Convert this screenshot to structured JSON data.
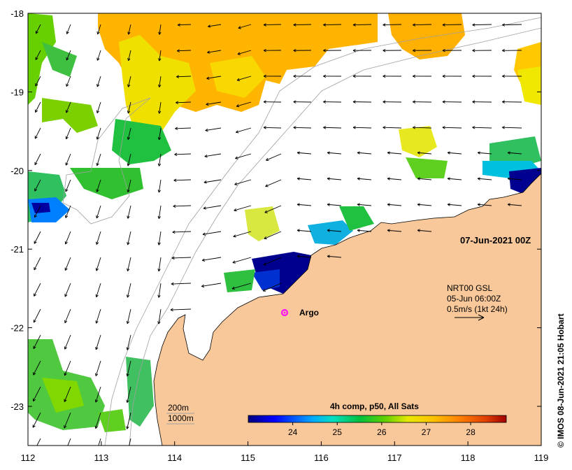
{
  "map": {
    "date_label": "07-Jun-2021 00Z",
    "credit": "© IMOS 08-Jun-2021 21:05 Hobart",
    "argo_label": "Argo",
    "current_box": {
      "line1": "NRT00 GSL",
      "line2": "05-Jun 06:00Z",
      "line3": "0.5m/s (1kt 24h)"
    },
    "depth_legend": [
      "200m",
      "1000m"
    ],
    "colorbar": {
      "title": "4h comp, p50, All Sats",
      "ticks": [
        "24",
        "25",
        "26",
        "27",
        "28"
      ],
      "range": [
        23.0,
        28.8
      ],
      "colors": [
        "#00007f",
        "#0000ff",
        "#00aaff",
        "#00e0c0",
        "#00c040",
        "#60d000",
        "#e8e800",
        "#ffc000",
        "#ff8000",
        "#e04000",
        "#a00000"
      ]
    },
    "x_ticks": [
      "112",
      "113",
      "114",
      "115",
      "116",
      "117",
      "118",
      "119"
    ],
    "y_ticks": [
      "-18",
      "-19",
      "-20",
      "-21",
      "-22",
      "-23"
    ],
    "colors": {
      "land": "#f8c89a",
      "background": "#ffffff",
      "argo": "#ff00ff"
    }
  }
}
